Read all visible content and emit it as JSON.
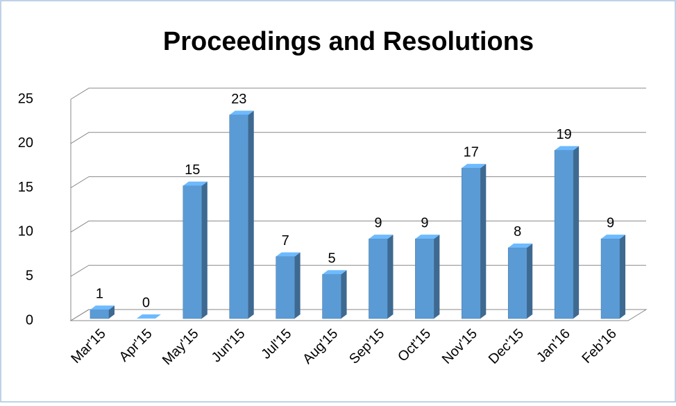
{
  "chart_data": {
    "type": "bar",
    "title": "Proceedings and Resolutions",
    "categories": [
      "Mar'15",
      "Apr'15",
      "May'15",
      "Jun'15",
      "Jul'15",
      "Aug'15",
      "Sep'15",
      "Oct'15",
      "Nov'15",
      "Dec'15",
      "Jan'16",
      "Feb'16"
    ],
    "values": [
      1,
      0,
      15,
      23,
      7,
      5,
      9,
      9,
      17,
      8,
      19,
      9
    ],
    "color": "#5b9bd5",
    "ylim": [
      0,
      25
    ],
    "yticks": [
      0,
      5,
      10,
      15,
      20,
      25
    ],
    "grid": true
  }
}
